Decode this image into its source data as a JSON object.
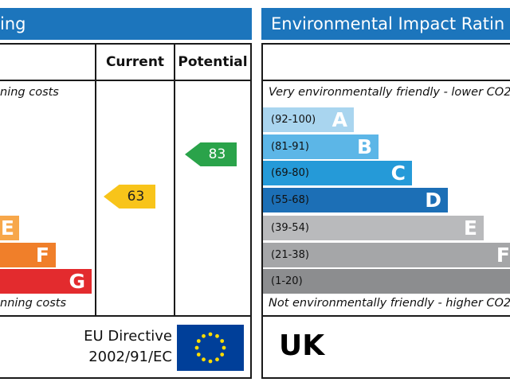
{
  "left_panel": {
    "title": "ing",
    "col_current": "Current",
    "col_potential": "Potential",
    "top_note": "ning costs",
    "bottom_note": "nning costs",
    "bands": [
      {
        "letter": "E",
        "color": "#f7a74a"
      },
      {
        "letter": "F",
        "color": "#f07f2a"
      },
      {
        "letter": "G",
        "color": "#e32b2e"
      }
    ],
    "current": {
      "value": "63",
      "color": "#f8c41a"
    },
    "potential": {
      "value": "83",
      "color": "#2aa34a"
    },
    "eu_line1": "EU Directive",
    "eu_line2": "2002/91/EC",
    "flag_icon": "eu-flag-icon"
  },
  "right_panel": {
    "title": "Environmental Impact Ratin",
    "top_note": "Very environmentally friendly - lower CO2 en",
    "bottom_note": "Not environmentally friendly - higher CO2 e",
    "bands": [
      {
        "range": "(92-100)",
        "letter": "A",
        "color": "#a9d5ef"
      },
      {
        "range": "(81-91)",
        "letter": "B",
        "color": "#5cb6e7"
      },
      {
        "range": "(69-80)",
        "letter": "C",
        "color": "#259ad8"
      },
      {
        "range": "(55-68)",
        "letter": "D",
        "color": "#1c6fb6"
      },
      {
        "range": "(39-54)",
        "letter": "E",
        "color": "#b9babc"
      },
      {
        "range": "(21-38)",
        "letter": "F",
        "color": "#a5a6a8"
      },
      {
        "range": "(1-20)",
        "letter": "",
        "color": "#8c8d8f"
      }
    ],
    "country": "UK"
  }
}
